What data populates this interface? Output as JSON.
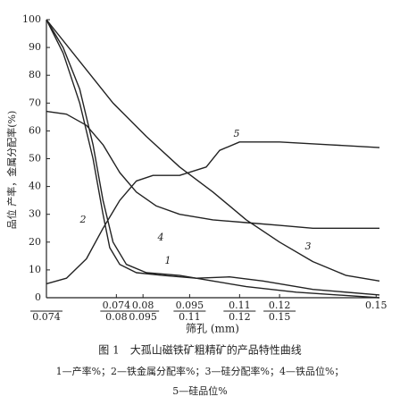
{
  "chart_data": {
    "type": "line",
    "y_label": "品位 产率，金属分配率(%)",
    "x_label": "筛孔 (mm)",
    "caption": "图 1　大孤山磁铁矿粗精矿的产品特性曲线",
    "legend_lines": [
      "1—产率%；2—铁金属分配率%；3—硅分配率%；4—铁品位%；",
      "5—硅品位%"
    ],
    "ylim": [
      0,
      100
    ],
    "yticks": [
      0,
      10,
      20,
      30,
      40,
      50,
      60,
      70,
      80,
      90,
      100
    ],
    "xlim": [
      0,
      100
    ],
    "xticks": [
      {
        "value": 0,
        "bottom": "0.074"
      },
      {
        "value": 21,
        "top": "0.074",
        "bottom": "0.08"
      },
      {
        "value": 29,
        "top": "0.08",
        "bottom": "0.095"
      },
      {
        "value": 43,
        "top": "0.095",
        "bottom": "0.11"
      },
      {
        "value": 58,
        "top": "0.11",
        "bottom": "0.12"
      },
      {
        "value": 70,
        "top": "0.12",
        "bottom": "0.15"
      },
      {
        "value": 99,
        "top": "0.15"
      }
    ],
    "series": [
      {
        "name": "1",
        "color": "#222",
        "x": [
          0,
          5,
          10,
          14,
          17,
          19,
          22,
          27,
          35,
          45,
          55,
          65,
          80,
          100
        ],
        "values": [
          100,
          88,
          70,
          50,
          30,
          18,
          12,
          9,
          8,
          7,
          7.5,
          6,
          3,
          1
        ]
      },
      {
        "name": "2",
        "color": "#222",
        "x": [
          0,
          5,
          10,
          14,
          17,
          20,
          24,
          30,
          40,
          50,
          60,
          75,
          100
        ],
        "values": [
          100,
          90,
          75,
          55,
          35,
          20,
          12,
          9,
          8,
          6,
          4,
          2,
          0
        ]
      },
      {
        "name": "3",
        "color": "#222",
        "x": [
          0,
          10,
          20,
          30,
          40,
          50,
          60,
          70,
          80,
          90,
          100
        ],
        "values": [
          100,
          85,
          70,
          58,
          47,
          38,
          28,
          20,
          13,
          8,
          6
        ]
      },
      {
        "name": "4",
        "color": "#222",
        "x": [
          0,
          6,
          12,
          17,
          22,
          27,
          33,
          40,
          50,
          60,
          70,
          80,
          100
        ],
        "values": [
          67,
          66,
          62,
          55,
          45,
          38,
          33,
          30,
          28,
          27,
          26,
          25,
          25
        ]
      },
      {
        "name": "5",
        "color": "#222",
        "x": [
          0,
          6,
          12,
          17,
          22,
          27,
          32,
          40,
          48,
          52,
          58,
          70,
          85,
          100
        ],
        "values": [
          5,
          7,
          14,
          25,
          35,
          42,
          44,
          44,
          47,
          53,
          56,
          56,
          55,
          54
        ]
      }
    ]
  }
}
